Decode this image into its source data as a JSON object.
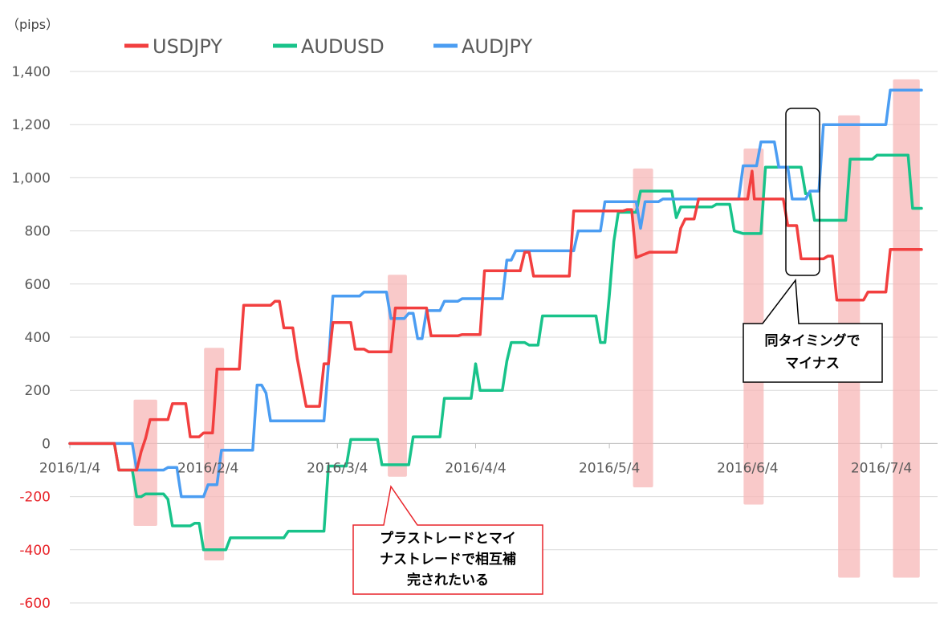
{
  "chart_data": {
    "type": "line",
    "unit_label": "（pips）",
    "ylim": [
      -600,
      1400
    ],
    "yticks": [
      -600,
      -400,
      -200,
      0,
      200,
      400,
      600,
      800,
      1000,
      1200,
      1400
    ],
    "ytick_labels": [
      "-600",
      "-400",
      "-200",
      "0",
      "200",
      "400",
      "600",
      "800",
      "1,000",
      "1,200",
      "1,400"
    ],
    "negative_tick_color": "#e8242a",
    "x_tick_labels": [
      "2016/1/4",
      "2016/2/4",
      "2016/3/4",
      "2016/4/4",
      "2016/5/4",
      "2016/6/4",
      "2016/7/4"
    ],
    "x_tick_days": [
      0,
      31,
      60,
      91,
      121,
      152,
      182
    ],
    "xlim_days": [
      0,
      191
    ],
    "grid": true,
    "legend": "top-left",
    "series": [
      {
        "name": "USDJPY",
        "color": "#f23f3f",
        "points": [
          [
            0,
            0
          ],
          [
            10,
            0
          ],
          [
            11,
            -100
          ],
          [
            14,
            -100
          ],
          [
            15,
            -100
          ],
          [
            16,
            -30
          ],
          [
            17,
            20
          ],
          [
            18,
            90
          ],
          [
            22,
            90
          ],
          [
            23,
            150
          ],
          [
            26,
            150
          ],
          [
            27,
            25
          ],
          [
            29,
            25
          ],
          [
            30,
            40
          ],
          [
            32,
            40
          ],
          [
            33,
            280
          ],
          [
            38,
            280
          ],
          [
            39,
            520
          ],
          [
            45,
            520
          ],
          [
            46,
            535
          ],
          [
            47,
            535
          ],
          [
            48,
            435
          ],
          [
            50,
            435
          ],
          [
            51,
            320
          ],
          [
            53,
            140
          ],
          [
            56,
            140
          ],
          [
            57,
            300
          ],
          [
            58,
            300
          ],
          [
            59,
            455
          ],
          [
            63,
            455
          ],
          [
            64,
            355
          ],
          [
            66,
            355
          ],
          [
            67,
            345
          ],
          [
            72,
            345
          ],
          [
            73,
            510
          ],
          [
            79,
            510
          ],
          [
            80,
            510
          ],
          [
            81,
            405
          ],
          [
            87,
            405
          ],
          [
            88,
            410
          ],
          [
            92,
            410
          ],
          [
            93,
            650
          ],
          [
            101,
            650
          ],
          [
            102,
            720
          ],
          [
            103,
            720
          ],
          [
            104,
            630
          ],
          [
            111,
            630
          ],
          [
            112,
            630
          ],
          [
            113,
            875
          ],
          [
            124,
            875
          ],
          [
            125,
            880
          ],
          [
            126,
            880
          ],
          [
            127,
            700
          ],
          [
            130,
            720
          ],
          [
            136,
            720
          ],
          [
            137,
            810
          ],
          [
            138,
            845
          ],
          [
            140,
            845
          ],
          [
            141,
            920
          ],
          [
            152,
            920
          ],
          [
            153,
            1025
          ],
          [
            153.5,
            920
          ],
          [
            160,
            920
          ],
          [
            161,
            820
          ],
          [
            163,
            820
          ],
          [
            164,
            695
          ],
          [
            169,
            695
          ],
          [
            170,
            705
          ],
          [
            171,
            705
          ],
          [
            172,
            540
          ],
          [
            178,
            540
          ],
          [
            179,
            570
          ],
          [
            183,
            570
          ],
          [
            184,
            730
          ],
          [
            191,
            730
          ]
        ]
      },
      {
        "name": "AUDUSD",
        "color": "#18c38a",
        "points": [
          [
            0,
            0
          ],
          [
            10,
            0
          ],
          [
            11,
            -100
          ],
          [
            14,
            -100
          ],
          [
            15,
            -200
          ],
          [
            16,
            -200
          ],
          [
            17,
            -190
          ],
          [
            21,
            -190
          ],
          [
            22,
            -210
          ],
          [
            23,
            -310
          ],
          [
            27,
            -310
          ],
          [
            28,
            -300
          ],
          [
            29,
            -300
          ],
          [
            30,
            -400
          ],
          [
            35,
            -400
          ],
          [
            36,
            -355
          ],
          [
            48,
            -355
          ],
          [
            49,
            -330
          ],
          [
            57,
            -330
          ],
          [
            58,
            -85
          ],
          [
            62,
            -85
          ],
          [
            63,
            15
          ],
          [
            69,
            15
          ],
          [
            70,
            -80
          ],
          [
            76,
            -80
          ],
          [
            77,
            25
          ],
          [
            83,
            25
          ],
          [
            84,
            170
          ],
          [
            90,
            170
          ],
          [
            91,
            300
          ],
          [
            92,
            200
          ],
          [
            97,
            200
          ],
          [
            98,
            310
          ],
          [
            99,
            380
          ],
          [
            102,
            380
          ],
          [
            103,
            370
          ],
          [
            105,
            370
          ],
          [
            106,
            480
          ],
          [
            118,
            480
          ],
          [
            119,
            380
          ],
          [
            120,
            380
          ],
          [
            121,
            560
          ],
          [
            122,
            760
          ],
          [
            123,
            870
          ],
          [
            127,
            870
          ],
          [
            128,
            950
          ],
          [
            135,
            950
          ],
          [
            136,
            850
          ],
          [
            137,
            890
          ],
          [
            144,
            890
          ],
          [
            145,
            900
          ],
          [
            148,
            900
          ],
          [
            149,
            800
          ],
          [
            151,
            790
          ],
          [
            155,
            790
          ],
          [
            156,
            1040
          ],
          [
            164,
            1040
          ],
          [
            165,
            940
          ],
          [
            166,
            940
          ],
          [
            167,
            840
          ],
          [
            174,
            840
          ],
          [
            175,
            1070
          ],
          [
            180,
            1070
          ],
          [
            181,
            1085
          ],
          [
            188,
            1085
          ],
          [
            189,
            885
          ],
          [
            191,
            885
          ]
        ]
      },
      {
        "name": "AUDJPY",
        "color": "#4b9df2",
        "points": [
          [
            0,
            0
          ],
          [
            14,
            0
          ],
          [
            15,
            -100
          ],
          [
            21,
            -100
          ],
          [
            22,
            -90
          ],
          [
            24,
            -90
          ],
          [
            25,
            -200
          ],
          [
            30,
            -200
          ],
          [
            31,
            -155
          ],
          [
            33,
            -155
          ],
          [
            34,
            -25
          ],
          [
            41,
            -25
          ],
          [
            42,
            220
          ],
          [
            43,
            220
          ],
          [
            44,
            190
          ],
          [
            45,
            85
          ],
          [
            57,
            85
          ],
          [
            58,
            300
          ],
          [
            59,
            555
          ],
          [
            65,
            555
          ],
          [
            66,
            570
          ],
          [
            71,
            570
          ],
          [
            72,
            470
          ],
          [
            75,
            470
          ],
          [
            76,
            490
          ],
          [
            77,
            490
          ],
          [
            78,
            395
          ],
          [
            79,
            395
          ],
          [
            80,
            500
          ],
          [
            83,
            500
          ],
          [
            84,
            535
          ],
          [
            87,
            535
          ],
          [
            88,
            545
          ],
          [
            97,
            545
          ],
          [
            98,
            690
          ],
          [
            99,
            690
          ],
          [
            100,
            725
          ],
          [
            113,
            725
          ],
          [
            114,
            800
          ],
          [
            119,
            800
          ],
          [
            120,
            910
          ],
          [
            127,
            910
          ],
          [
            128,
            810
          ],
          [
            129,
            910
          ],
          [
            132,
            910
          ],
          [
            133,
            920
          ],
          [
            150,
            920
          ],
          [
            151,
            1045
          ],
          [
            154,
            1045
          ],
          [
            155,
            1135
          ],
          [
            158,
            1135
          ],
          [
            159,
            1040
          ],
          [
            161,
            1040
          ],
          [
            162,
            920
          ],
          [
            165,
            920
          ],
          [
            166,
            950
          ],
          [
            168,
            950
          ],
          [
            169,
            1200
          ],
          [
            183,
            1200
          ],
          [
            184,
            1330
          ],
          [
            191,
            1330
          ]
        ]
      }
    ],
    "highlights": [
      [
        14.3,
        19.6,
        -310,
        165
      ],
      [
        30.1,
        34.6,
        -440,
        360
      ],
      [
        71.3,
        75.6,
        -125,
        635
      ],
      [
        126.3,
        130.8,
        -165,
        1035
      ],
      [
        151.1,
        155.6,
        -230,
        1110
      ],
      [
        172.3,
        177.2,
        -505,
        1235
      ],
      [
        184.6,
        190.6,
        -505,
        1370
      ]
    ],
    "annotations": [
      {
        "text_lines": [
          "プラストレードとマイ",
          "ナストレードで相互補",
          "完された​いる"
        ]
      },
      {
        "text_lines": [
          "同タイミングで",
          "マイナス"
        ]
      }
    ]
  }
}
